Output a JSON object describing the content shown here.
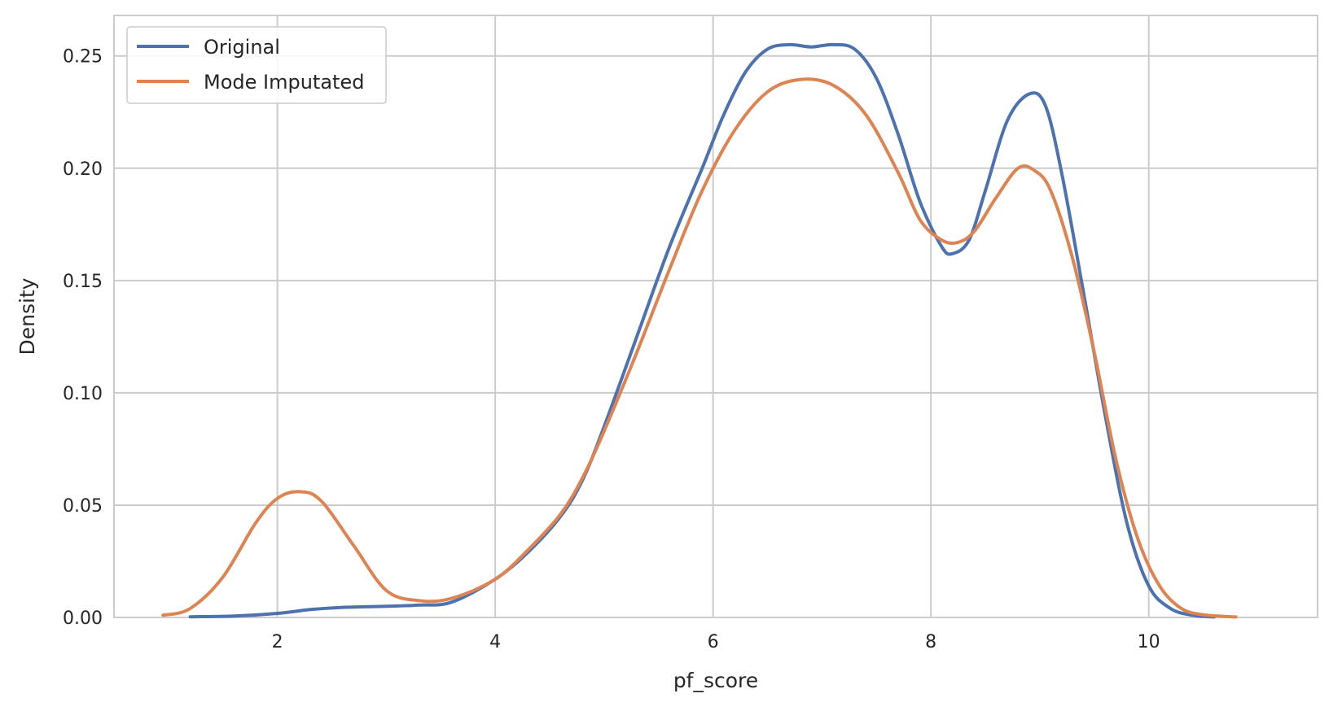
{
  "chart_data": {
    "type": "line",
    "title": "",
    "xlabel": "pf_score",
    "ylabel": "Density",
    "xlim": [
      0.5,
      11.55
    ],
    "ylim": [
      0,
      0.268
    ],
    "x_ticks": [
      2,
      4,
      6,
      8,
      10
    ],
    "x_tick_labels": [
      "2",
      "4",
      "6",
      "8",
      "10"
    ],
    "y_ticks": [
      0,
      0.05,
      0.1,
      0.15,
      0.2,
      0.25
    ],
    "y_tick_labels": [
      "0.00",
      "0.05",
      "0.10",
      "0.15",
      "0.20",
      "0.25"
    ],
    "grid": true,
    "legend_position": "top-left",
    "series": [
      {
        "name": "Original",
        "color": "#4c72b0",
        "x": [
          1.2,
          1.6,
          2.0,
          2.3,
          2.6,
          3.0,
          3.3,
          3.6,
          4.0,
          4.3,
          4.6,
          4.8,
          5.0,
          5.3,
          5.6,
          5.9,
          6.1,
          6.3,
          6.5,
          6.7,
          6.9,
          7.1,
          7.3,
          7.5,
          7.7,
          7.9,
          8.1,
          8.2,
          8.35,
          8.5,
          8.7,
          8.9,
          9.05,
          9.2,
          9.4,
          9.6,
          9.8,
          10.0,
          10.2,
          10.4,
          10.6
        ],
        "y": [
          0.0003,
          0.0006,
          0.0018,
          0.0035,
          0.0045,
          0.005,
          0.0055,
          0.0068,
          0.017,
          0.029,
          0.045,
          0.061,
          0.085,
          0.125,
          0.165,
          0.2,
          0.224,
          0.243,
          0.253,
          0.255,
          0.254,
          0.255,
          0.253,
          0.24,
          0.215,
          0.185,
          0.165,
          0.162,
          0.168,
          0.19,
          0.221,
          0.233,
          0.228,
          0.198,
          0.145,
          0.09,
          0.042,
          0.014,
          0.004,
          0.001,
          0.0002
        ]
      },
      {
        "name": "Mode Imputated",
        "color": "#dd8452",
        "x": [
          0.95,
          1.2,
          1.5,
          1.8,
          2.0,
          2.2,
          2.4,
          2.7,
          3.0,
          3.3,
          3.6,
          4.0,
          4.3,
          4.6,
          4.8,
          5.0,
          5.3,
          5.6,
          5.9,
          6.2,
          6.5,
          6.8,
          7.1,
          7.4,
          7.7,
          7.9,
          8.1,
          8.25,
          8.4,
          8.6,
          8.8,
          8.95,
          9.1,
          9.3,
          9.5,
          9.7,
          9.9,
          10.1,
          10.3,
          10.5,
          10.8
        ],
        "y": [
          0.001,
          0.004,
          0.018,
          0.042,
          0.053,
          0.056,
          0.052,
          0.032,
          0.012,
          0.0075,
          0.0085,
          0.017,
          0.03,
          0.046,
          0.062,
          0.083,
          0.118,
          0.155,
          0.19,
          0.217,
          0.234,
          0.2395,
          0.237,
          0.224,
          0.198,
          0.177,
          0.168,
          0.167,
          0.172,
          0.187,
          0.2,
          0.199,
          0.19,
          0.16,
          0.118,
          0.07,
          0.035,
          0.014,
          0.004,
          0.0012,
          0.0002
        ]
      }
    ]
  }
}
